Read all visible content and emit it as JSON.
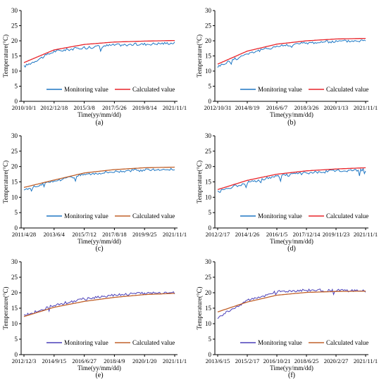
{
  "figure": {
    "panels": [
      {
        "label": "(a)",
        "ylabel": "Temperature(°C)",
        "xlabel": "Time(yy/mm/dd)",
        "xticks": [
          "2010/10/1",
          "2012/12/18",
          "2015/3/8",
          "2017/5/26",
          "2019/8/14",
          "2021/11/1"
        ],
        "yticks": [
          "0",
          "5",
          "10",
          "15",
          "20",
          "25",
          "30"
        ],
        "legend": [
          "Monitoring value",
          "Calculated value"
        ]
      },
      {
        "label": "(b)",
        "ylabel": "Temperature(°C)",
        "xlabel": "Time(yy/mm/dd)",
        "xticks": [
          "2012/10/31",
          "2014/8/19",
          "2016/6/7",
          "2018/3/26",
          "2020/1/13",
          "2021/11/1"
        ],
        "yticks": [
          "0",
          "5",
          "10",
          "15",
          "20",
          "25",
          "30"
        ],
        "legend": [
          "Monitoring value",
          "Calculated value"
        ]
      },
      {
        "label": "(c)",
        "ylabel": "Temperature(°C)",
        "xlabel": "Time(yy/mm/dd)",
        "xticks": [
          "2011/4/28",
          "2013/6/4",
          "2015/7/12",
          "2017/8/18",
          "2019/9/25",
          "2021/11/1"
        ],
        "yticks": [
          "0",
          "5",
          "10",
          "15",
          "20",
          "25",
          "30"
        ],
        "legend": [
          "Monitoring value",
          "Calculated value"
        ]
      },
      {
        "label": "(d)",
        "ylabel": "Temperature(°C)",
        "xlabel": "Time(yy/mm/dd)",
        "xticks": [
          "2012/2/17",
          "2014/1/26",
          "2016/1/5",
          "2017/12/14",
          "2019/11/23",
          "2021/11/1"
        ],
        "yticks": [
          "0",
          "5",
          "10",
          "15",
          "20",
          "25",
          "30"
        ],
        "legend": [
          "Monitoring value",
          "Calculated value"
        ]
      },
      {
        "label": "(e)",
        "ylabel": "Temperature(°C)",
        "xlabel": "Time(yy/mm/dd)",
        "xticks": [
          "2012/12/3",
          "2014/9/15",
          "2016/6/27",
          "2018/4/9",
          "2020/1/20",
          "2021/11/1"
        ],
        "yticks": [
          "0",
          "5",
          "10",
          "15",
          "20",
          "25",
          "30"
        ],
        "legend": [
          "Monitoring value",
          "Calculated value"
        ]
      },
      {
        "label": "(f)",
        "ylabel": "Temperature(°C)",
        "xlabel": "Time(yy/mm/dd)",
        "xticks": [
          "2013/6/15",
          "2015/2/17",
          "2016/10/21",
          "2018/6/25",
          "2020/2/27",
          "2021/11/1"
        ],
        "yticks": [
          "0",
          "5",
          "10",
          "15",
          "20",
          "25",
          "30"
        ],
        "legend": [
          "Monitoring value",
          "Calculated value"
        ]
      }
    ]
  },
  "colors": {
    "monitoring": "#1f77c4",
    "calculated_red": "#e8242a",
    "calculated_brown": "#c0602a",
    "monitoring_purple": "#4a3fb8",
    "axis": "#000000"
  },
  "chart_data": [
    {
      "type": "line",
      "label": "(a)",
      "ylim": [
        0,
        30
      ],
      "x_dates": [
        "2010/10/1",
        "2012/12/18",
        "2015/3/8",
        "2017/5/26",
        "2019/8/14",
        "2021/11/1"
      ],
      "series": [
        {
          "name": "Monitoring value",
          "values": [
            11.5,
            16.5,
            17.8,
            18.6,
            18.9,
            19.3
          ]
        },
        {
          "name": "Calculated value",
          "values": [
            12.8,
            17.0,
            18.8,
            19.6,
            19.9,
            20.1
          ]
        }
      ]
    },
    {
      "type": "line",
      "label": "(b)",
      "ylim": [
        0,
        30
      ],
      "x_dates": [
        "2012/10/31",
        "2014/8/19",
        "2016/6/7",
        "2018/3/26",
        "2020/1/13",
        "2021/11/1"
      ],
      "series": [
        {
          "name": "Monitoring value",
          "values": [
            11.5,
            15.8,
            18.2,
            19.3,
            19.8,
            20.1
          ]
        },
        {
          "name": "Calculated value",
          "values": [
            12.3,
            16.6,
            18.9,
            20.0,
            20.6,
            20.8
          ]
        }
      ]
    },
    {
      "type": "line",
      "label": "(c)",
      "ylim": [
        0,
        30
      ],
      "x_dates": [
        "2011/4/28",
        "2013/6/4",
        "2015/7/12",
        "2017/8/18",
        "2019/9/25",
        "2021/11/1"
      ],
      "series": [
        {
          "name": "Monitoring value",
          "values": [
            12.5,
            15.3,
            17.5,
            18.4,
            18.9,
            19.1
          ]
        },
        {
          "name": "Calculated value",
          "values": [
            13.2,
            15.6,
            17.9,
            19.0,
            19.6,
            19.8
          ]
        }
      ]
    },
    {
      "type": "line",
      "label": "(d)",
      "ylim": [
        0,
        30
      ],
      "x_dates": [
        "2012/2/17",
        "2014/1/26",
        "2016/1/5",
        "2017/12/14",
        "2019/11/23",
        "2021/11/1"
      ],
      "series": [
        {
          "name": "Monitoring value",
          "values": [
            12.0,
            14.8,
            16.8,
            17.9,
            18.6,
            19.0
          ]
        },
        {
          "name": "Calculated value",
          "values": [
            12.5,
            15.5,
            17.5,
            18.6,
            19.2,
            19.6
          ]
        }
      ]
    },
    {
      "type": "line",
      "label": "(e)",
      "ylim": [
        0,
        30
      ],
      "x_dates": [
        "2012/12/3",
        "2014/9/15",
        "2016/6/27",
        "2018/4/9",
        "2020/1/20",
        "2021/11/1"
      ],
      "series": [
        {
          "name": "Monitoring value",
          "values": [
            12.5,
            16.0,
            18.0,
            19.3,
            19.8,
            20.0
          ]
        },
        {
          "name": "Calculated value",
          "values": [
            12.3,
            15.3,
            17.2,
            18.5,
            19.4,
            19.8
          ]
        }
      ]
    },
    {
      "type": "line",
      "label": "(f)",
      "ylim": [
        0,
        30
      ],
      "x_dates": [
        "2013/6/15",
        "2015/2/17",
        "2016/10/21",
        "2018/6/25",
        "2020/2/27",
        "2021/11/1"
      ],
      "series": [
        {
          "name": "Monitoring value",
          "values": [
            12.0,
            17.5,
            20.3,
            20.8,
            20.7,
            20.6
          ]
        },
        {
          "name": "Calculated value",
          "values": [
            13.8,
            17.0,
            19.2,
            20.1,
            20.4,
            20.5
          ]
        }
      ]
    }
  ]
}
